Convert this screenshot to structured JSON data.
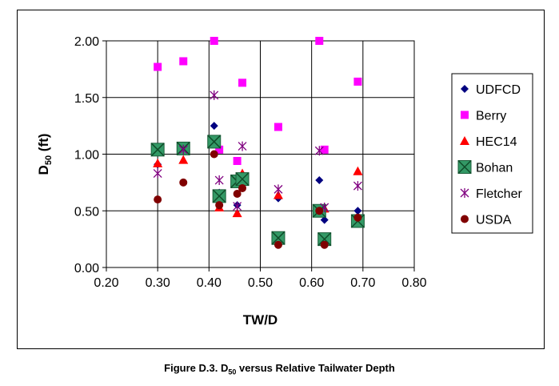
{
  "chart_data": {
    "type": "scatter",
    "xlabel": "TW/D",
    "ylabel_main": "D",
    "ylabel_sub": "50",
    "ylabel_unit": " (ft)",
    "xlim": [
      0.2,
      0.8
    ],
    "ylim": [
      0.0,
      2.0
    ],
    "xticks": [
      "0.20",
      "0.30",
      "0.40",
      "0.50",
      "0.60",
      "0.70",
      "0.80"
    ],
    "yticks": [
      "0.00",
      "0.50",
      "1.00",
      "1.50",
      "2.00"
    ],
    "grid": true,
    "legend_position": "right",
    "series": [
      {
        "name": "UDFCD",
        "marker": "diamond",
        "color": "#000080",
        "points": [
          [
            0.3,
            0.91
          ],
          [
            0.41,
            1.25
          ],
          [
            0.42,
            0.66
          ],
          [
            0.455,
            0.55
          ],
          [
            0.535,
            0.61
          ],
          [
            0.615,
            0.77
          ],
          [
            0.625,
            0.42
          ],
          [
            0.69,
            0.5
          ]
        ]
      },
      {
        "name": "Berry",
        "marker": "square",
        "color": "#ff00ff",
        "points": [
          [
            0.3,
            1.77
          ],
          [
            0.35,
            1.82
          ],
          [
            0.41,
            2.0
          ],
          [
            0.42,
            1.04
          ],
          [
            0.455,
            0.94
          ],
          [
            0.465,
            1.63
          ],
          [
            0.535,
            1.24
          ],
          [
            0.615,
            2.0
          ],
          [
            0.625,
            1.04
          ],
          [
            0.69,
            1.64
          ]
        ]
      },
      {
        "name": "HEC14",
        "marker": "triangle",
        "color": "#ff0000",
        "points": [
          [
            0.3,
            0.92
          ],
          [
            0.35,
            0.95
          ],
          [
            0.42,
            0.53
          ],
          [
            0.455,
            0.48
          ],
          [
            0.465,
            0.83
          ],
          [
            0.535,
            0.64
          ],
          [
            0.615,
            0.5
          ],
          [
            0.625,
            0.52
          ],
          [
            0.69,
            0.85
          ]
        ]
      },
      {
        "name": "Bohan",
        "marker": "boxx",
        "color": "#339966",
        "points": [
          [
            0.3,
            1.04
          ],
          [
            0.35,
            1.05
          ],
          [
            0.41,
            1.11
          ],
          [
            0.42,
            0.63
          ],
          [
            0.455,
            0.76
          ],
          [
            0.465,
            0.78
          ],
          [
            0.535,
            0.26
          ],
          [
            0.615,
            0.5
          ],
          [
            0.625,
            0.25
          ],
          [
            0.69,
            0.41
          ]
        ]
      },
      {
        "name": "Fletcher",
        "marker": "star",
        "color": "#800080",
        "points": [
          [
            0.3,
            0.83
          ],
          [
            0.35,
            1.04
          ],
          [
            0.41,
            1.52
          ],
          [
            0.42,
            0.77
          ],
          [
            0.455,
            0.54
          ],
          [
            0.465,
            1.07
          ],
          [
            0.535,
            0.69
          ],
          [
            0.615,
            1.03
          ],
          [
            0.625,
            0.53
          ],
          [
            0.69,
            0.72
          ]
        ]
      },
      {
        "name": "USDA",
        "marker": "circle",
        "color": "#800000",
        "points": [
          [
            0.3,
            0.6
          ],
          [
            0.35,
            0.75
          ],
          [
            0.41,
            1.0
          ],
          [
            0.42,
            0.55
          ],
          [
            0.455,
            0.65
          ],
          [
            0.465,
            0.7
          ],
          [
            0.535,
            0.2
          ],
          [
            0.615,
            0.5
          ],
          [
            0.625,
            0.2
          ],
          [
            0.69,
            0.44
          ]
        ]
      }
    ]
  },
  "caption": {
    "prefix": "Figure D.3. D",
    "sub": "50",
    "suffix": " versus Relative Tailwater Depth"
  }
}
